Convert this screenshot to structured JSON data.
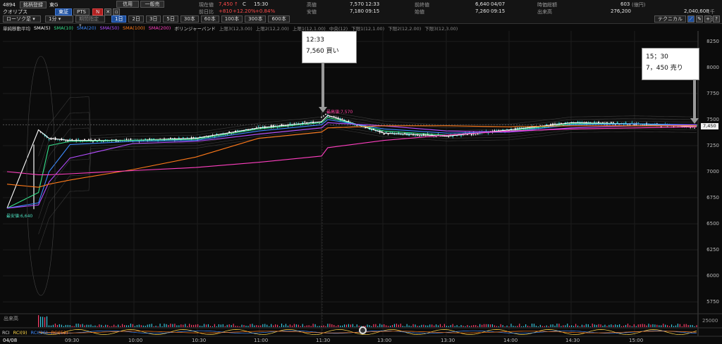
{
  "header": {
    "code": "4894",
    "name": "クオリプス",
    "register_button": "銘柄登録",
    "market": "東G",
    "venue_tabs": [
      "東証",
      "PTS"
    ],
    "credit_button": "信用",
    "general_button": "一般売",
    "n_badge": "N",
    "chart_type_select": "ローソク足",
    "interval_select": "1分",
    "period_select": "期間指定",
    "day_tabs": [
      "1日",
      "2日",
      "3日",
      "5日",
      "30本",
      "60本",
      "100本",
      "300本",
      "600本"
    ],
    "technical_button": "テクニカル"
  },
  "quote": {
    "current_label": "現在値",
    "current_value": "7,450",
    "current_arrow": "↑",
    "current_flag": "C",
    "current_time": "15:30",
    "change_label": "前日比",
    "change_value": "+810",
    "change_pct": "+12.20%",
    "change_pct2": "+0.84%",
    "high_label": "高値",
    "high_value": "7,570",
    "high_time": "12:33",
    "low_label": "安値",
    "low_value": "7,180",
    "low_time": "09:15",
    "prev_close_label": "前終値",
    "prev_close_value": "6,640",
    "prev_close_date": "04/07",
    "open_label": "始値",
    "open_value": "7,260",
    "open_time": "09:15",
    "market_cap_label": "時価総額",
    "market_cap_value": "603",
    "market_cap_unit": "(億円)",
    "volume_label": "出来高",
    "volume_value": "276,200",
    "turnover_value": "2,040,608",
    "turnover_unit": "(千円)"
  },
  "indicators": [
    {
      "label": "単純移動平均",
      "color": "#cfcfcf"
    },
    {
      "label": "SMA(5)",
      "color": "#ffffff"
    },
    {
      "label": "SMA(10)",
      "color": "#35e08a"
    },
    {
      "label": "SMA(20)",
      "color": "#3d8bff"
    },
    {
      "label": "SMA(50)",
      "color": "#b44dff"
    },
    {
      "label": "SMA(100)",
      "color": "#ff7a1a"
    },
    {
      "label": "SMA(200)",
      "color": "#ff3fc0"
    },
    {
      "label": "ボリンジャーバンド",
      "color": "#cfcfcf"
    },
    {
      "label": "上限3(12,3.00)",
      "color": "#8a8a8a"
    },
    {
      "label": "上限2(12,2.00)",
      "color": "#8a8a8a"
    },
    {
      "label": "上限1(12,1.00)",
      "color": "#8a8a8a"
    },
    {
      "label": "中央(12)",
      "color": "#8a8a8a"
    },
    {
      "label": "下限1(12,1.00)",
      "color": "#8a8a8a"
    },
    {
      "label": "下限2(12,2.00)",
      "color": "#8a8a8a"
    },
    {
      "label": "下限3(12,3.00)",
      "color": "#8a8a8a"
    }
  ],
  "chart": {
    "max_label": "最高値:7,570",
    "min_label": "最安値:6,640",
    "last_price_tag": "7,450",
    "callout_buy": {
      "time": "12:33",
      "text": "7,560 買い"
    },
    "callout_sell": {
      "time": "15；30",
      "text": "7，450 売り"
    }
  },
  "chart_data": {
    "type": "line",
    "title": "",
    "xlabel": "",
    "ylabel": "",
    "ylim": [
      5650,
      8350
    ],
    "yticks": [
      5750,
      6000,
      6250,
      6500,
      6750,
      7000,
      7250,
      7500,
      7750,
      8000,
      8250
    ],
    "xticks": [
      "04/08",
      "09:30",
      "10:00",
      "10:30",
      "11:00",
      "11:30",
      "13:00",
      "13:30",
      "14:00",
      "14:30",
      "15:00"
    ],
    "x": [
      "09:00",
      "09:15",
      "09:20",
      "09:30",
      "10:00",
      "10:30",
      "11:00",
      "11:30",
      "12:33",
      "13:00",
      "13:30",
      "14:00",
      "14:30",
      "15:00",
      "15:30"
    ],
    "series": [
      {
        "name": "SMA(5)",
        "values": [
          6650,
          7400,
          7320,
          7300,
          7300,
          7320,
          7420,
          7480,
          7540,
          7370,
          7340,
          7400,
          7470,
          7460,
          7430
        ]
      },
      {
        "name": "SMA(10)",
        "values": [
          6650,
          6800,
          7250,
          7290,
          7300,
          7310,
          7410,
          7470,
          7520,
          7390,
          7350,
          7390,
          7460,
          7460,
          7440
        ]
      },
      {
        "name": "SMA(20)",
        "values": [
          6650,
          6700,
          7000,
          7260,
          7290,
          7300,
          7390,
          7450,
          7500,
          7410,
          7370,
          7380,
          7450,
          7460,
          7450
        ]
      },
      {
        "name": "SMA(50)",
        "values": [
          6650,
          6680,
          6900,
          7130,
          7270,
          7290,
          7360,
          7420,
          7470,
          7440,
          7390,
          7380,
          7420,
          7440,
          7450
        ]
      },
      {
        "name": "SMA(100)",
        "values": [
          6880,
          6850,
          6880,
          6920,
          7020,
          7140,
          7320,
          7380,
          7420,
          7440,
          7440,
          7430,
          7440,
          7440,
          7440
        ]
      },
      {
        "name": "SMA(200)",
        "values": [
          7000,
          6970,
          6970,
          6980,
          7010,
          7040,
          7090,
          7150,
          7230,
          7300,
          7350,
          7390,
          7410,
          7420,
          7430
        ]
      }
    ],
    "lower_panels": [
      {
        "label": "出来高",
        "ytick": "25000"
      },
      {
        "label": "RCI",
        "series": [
          "RCI(9)",
          "RCI(26)",
          "RCI(52)"
        ]
      }
    ],
    "grid": true
  }
}
